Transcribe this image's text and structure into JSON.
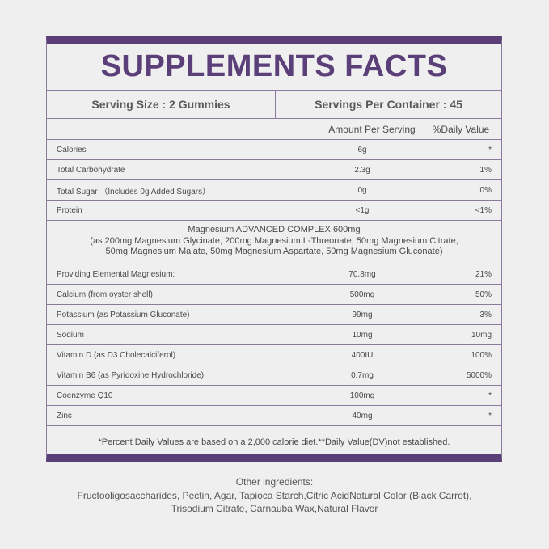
{
  "panel": {
    "title": "SUPPLEMENTS FACTS",
    "serving_size": "Serving Size : 2 Gummies",
    "servings_per_container": "Servings Per Container : 45",
    "header": {
      "amount": "Amount Per Serving",
      "dv": "%Daily Value"
    },
    "rows_top": [
      {
        "name": "Calories",
        "amount": "6g",
        "dv": "*"
      },
      {
        "name": "Total Carbohydrate",
        "amount": "2.3g",
        "dv": "1%"
      },
      {
        "name": "Total Sugar （Includes 0g Added Sugars）",
        "amount": "0g",
        "dv": "0%"
      },
      {
        "name": "Protein",
        "amount": "<1g",
        "dv": "<1%"
      }
    ],
    "complex": {
      "line1": "Magnesium ADVANCED COMPLEX 600mg",
      "line2": "(as 200mg Magnesium Glycinate, 200mg Magnesium L-Threonate, 50mg Magnesium Citrate,",
      "line3": "50mg Magnesium Malate, 50mg Magnesium Aspartate, 50mg Magnesium Gluconate)"
    },
    "rows_bottom": [
      {
        "name": "Providing Elemental Magnesium:",
        "amount": "70.8mg",
        "dv": "21%"
      },
      {
        "name": "Calcium (from oyster shell)",
        "amount": "500mg",
        "dv": "50%"
      },
      {
        "name": "Potassium (as Potassium Gluconate)",
        "amount": "99mg",
        "dv": "3%"
      },
      {
        "name": "Sodium",
        "amount": "10mg",
        "dv": "10mg"
      },
      {
        "name": "Vitamin D (as D3 Cholecalciferol)",
        "amount": "400IU",
        "dv": "100%"
      },
      {
        "name": "Vitamin B6 (as Pyridoxine Hydrochloride)",
        "amount": "0.7mg",
        "dv": "5000%"
      },
      {
        "name": "Coenzyme Q10",
        "amount": "100mg",
        "dv": "*"
      },
      {
        "name": "Zinc",
        "amount": "40mg",
        "dv": "*"
      }
    ],
    "footnote": "*Percent Daily Values are based on a 2,000 calorie diet.**Daily Value(DV)not established."
  },
  "other_ingredients": {
    "label": "Other ingredients:",
    "line1": "Fructooligosaccharides, Pectin, Agar, Tapioca Starch,Citric AcidNatural Color (Black Carrot),",
    "line2": "Trisodium Citrate, Carnauba Wax,Natural Flavor"
  },
  "colors": {
    "accent": "#5b3f78",
    "background": "#efefef",
    "rule": "#8a7a9c"
  }
}
